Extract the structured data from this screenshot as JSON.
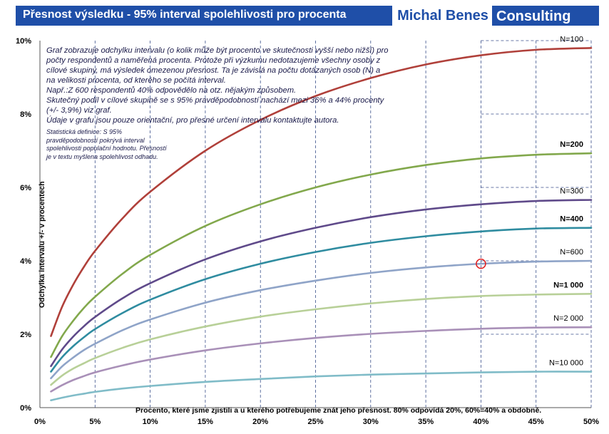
{
  "header": {
    "title": "Přesnost výsledku - 95% interval spolehlivosti pro procenta",
    "brand_name": "Michal Benes",
    "brand_consulting": "Consulting"
  },
  "note": {
    "paragraphs": [
      "Graf zobrazuje odchylku intervalu (o kolik může být procento ve skutečnosti vyšší nebo nižší) pro počty respondentů a naměřená procenta. Protože při výzkumu nedotazujeme všechny osoby z cílové skupiny, má výsledek omezenou přesnost.  Ta je závislá na počtu dotázaných osob (N) a na velikosti procenta, od kterého se počítá interval.",
      "Např.:Z 600 respondentů 40% odpovědělo na otz. nějakým způsobem.",
      "Skutečný podíl v cílové skupině se s 95% pravděpodobností nachází mezi 36% a 44% procenty (+/-  3,9%) viz graf.",
      "Údaje v grafu jsou pouze orientační, pro přesné určení intervalu kontaktujte autora."
    ],
    "small": "Statistická definice: S 95% pravděpodobností pokrývá interval spolehlivosti populační hodnotu. Přesností je v textu myšlena spolehlivost  odhadu."
  },
  "chart_data": {
    "type": "line",
    "xlabel": "Procento, které jsme zjistili a u kterého potřebujeme znát jeho přesnost. 80% odpovídá 20%, 60%=40% a obdobně.",
    "ylabel": "Odchylka intervalu +/- v procentech",
    "xlim": [
      0,
      50
    ],
    "ylim": [
      0,
      10
    ],
    "x_ticks": [
      "0%",
      "5%",
      "10%",
      "15%",
      "20%",
      "25%",
      "30%",
      "35%",
      "40%",
      "45%",
      "50%"
    ],
    "y_ticks": [
      "0%",
      "2%",
      "4%",
      "6%",
      "8%",
      "10%"
    ],
    "x": [
      1,
      2,
      3,
      4,
      5,
      7.5,
      10,
      15,
      20,
      25,
      30,
      35,
      40,
      45,
      50
    ],
    "series": [
      {
        "name": "N=100",
        "bold": false,
        "color": "#b0403a",
        "values": [
          1.95,
          2.74,
          3.34,
          3.84,
          4.27,
          5.16,
          5.88,
          7.0,
          7.84,
          8.49,
          8.98,
          9.35,
          9.6,
          9.75,
          9.8
        ]
      },
      {
        "name": "N=200",
        "bold": true,
        "color": "#82a84c",
        "values": [
          1.38,
          1.94,
          2.36,
          2.72,
          3.02,
          3.65,
          4.16,
          4.95,
          5.54,
          6.0,
          6.35,
          6.61,
          6.79,
          6.89,
          6.93
        ]
      },
      {
        "name": "N=300",
        "bold": false,
        "color": "#5f4a8a",
        "values": [
          1.13,
          1.58,
          1.93,
          2.22,
          2.47,
          2.98,
          3.39,
          4.04,
          4.53,
          4.9,
          5.19,
          5.4,
          5.54,
          5.63,
          5.66
        ]
      },
      {
        "name": "N=400",
        "bold": true,
        "color": "#2f8ca0",
        "values": [
          0.98,
          1.37,
          1.67,
          1.92,
          2.14,
          2.58,
          2.94,
          3.5,
          3.92,
          4.24,
          4.49,
          4.67,
          4.8,
          4.88,
          4.9
        ]
      },
      {
        "name": "N=600",
        "bold": false,
        "color": "#8fa4c8",
        "values": [
          0.8,
          1.12,
          1.36,
          1.57,
          1.74,
          2.11,
          2.4,
          2.86,
          3.2,
          3.46,
          3.67,
          3.82,
          3.92,
          3.98,
          4.0
        ]
      },
      {
        "name": "N=1 000",
        "bold": true,
        "color": "#b8d098",
        "values": [
          0.62,
          0.87,
          1.06,
          1.21,
          1.35,
          1.63,
          1.86,
          2.21,
          2.48,
          2.68,
          2.84,
          2.96,
          3.04,
          3.08,
          3.1
        ]
      },
      {
        "name": "N=2 000",
        "bold": false,
        "color": "#a990b8",
        "values": [
          0.44,
          0.61,
          0.75,
          0.86,
          0.96,
          1.15,
          1.31,
          1.56,
          1.75,
          1.9,
          2.01,
          2.09,
          2.15,
          2.18,
          2.19
        ]
      },
      {
        "name": "N=10 000",
        "bold": false,
        "color": "#80bcc8",
        "values": [
          0.2,
          0.27,
          0.33,
          0.38,
          0.43,
          0.52,
          0.59,
          0.7,
          0.78,
          0.85,
          0.9,
          0.93,
          0.96,
          0.98,
          0.98
        ]
      }
    ],
    "highlight": {
      "x": 40,
      "y": 3.92,
      "color": "#e02020"
    },
    "grid": true
  }
}
